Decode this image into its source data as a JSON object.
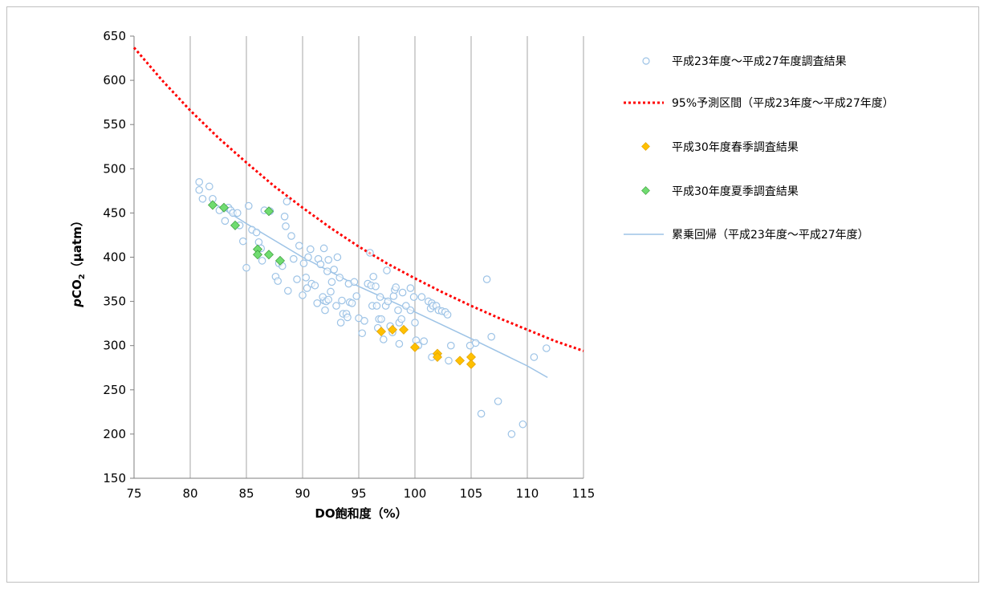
{
  "chart_data": {
    "type": "scatter",
    "xlabel": "DO飽和度（%）",
    "ylabel": {
      "italic": "p",
      "main": "CO",
      "sub": "2",
      "unit": "（µatm）"
    },
    "xlim": [
      75,
      115
    ],
    "ylim": [
      150,
      650
    ],
    "xticks": [
      75,
      80,
      85,
      90,
      95,
      100,
      105,
      110,
      115
    ],
    "yticks": [
      150,
      200,
      250,
      300,
      350,
      400,
      450,
      500,
      550,
      600,
      650
    ],
    "grid": {
      "vertical": true,
      "horizontal": false
    },
    "legend_position": "right",
    "series": [
      {
        "name": "平成23年度～平成27年度調査結果",
        "kind": "scatter",
        "marker": "circle-open",
        "color": "#9dc3e6",
        "points": [
          [
            80.8,
            485
          ],
          [
            80.8,
            476
          ],
          [
            81.1,
            466
          ],
          [
            81.7,
            480
          ],
          [
            82.0,
            466
          ],
          [
            82.6,
            453
          ],
          [
            83.1,
            441
          ],
          [
            83.4,
            456
          ],
          [
            83.6,
            453
          ],
          [
            83.8,
            450
          ],
          [
            84.2,
            450
          ],
          [
            84.4,
            436
          ],
          [
            84.7,
            418
          ],
          [
            85.0,
            388
          ],
          [
            85.2,
            458
          ],
          [
            85.5,
            431
          ],
          [
            85.9,
            428
          ],
          [
            86.1,
            417
          ],
          [
            86.3,
            410
          ],
          [
            86.6,
            453
          ],
          [
            86.4,
            396
          ],
          [
            87.1,
            452
          ],
          [
            87.6,
            378
          ],
          [
            87.8,
            373
          ],
          [
            87.9,
            393
          ],
          [
            88.2,
            390
          ],
          [
            88.4,
            446
          ],
          [
            88.5,
            435
          ],
          [
            88.6,
            463
          ],
          [
            88.7,
            362
          ],
          [
            89.0,
            424
          ],
          [
            89.2,
            398
          ],
          [
            89.5,
            375
          ],
          [
            89.7,
            413
          ],
          [
            90.0,
            357
          ],
          [
            90.1,
            393
          ],
          [
            90.3,
            377
          ],
          [
            90.4,
            365
          ],
          [
            90.5,
            400
          ],
          [
            90.7,
            409
          ],
          [
            90.8,
            370
          ],
          [
            91.1,
            368
          ],
          [
            91.3,
            348
          ],
          [
            91.4,
            398
          ],
          [
            91.6,
            392
          ],
          [
            91.9,
            351
          ],
          [
            91.8,
            355
          ],
          [
            91.9,
            410
          ],
          [
            92.0,
            340
          ],
          [
            92.1,
            350
          ],
          [
            92.2,
            384
          ],
          [
            92.3,
            397
          ],
          [
            92.3,
            352
          ],
          [
            92.5,
            361
          ],
          [
            92.6,
            372
          ],
          [
            92.8,
            386
          ],
          [
            93.0,
            345
          ],
          [
            93.1,
            400
          ],
          [
            93.3,
            377
          ],
          [
            93.4,
            326
          ],
          [
            93.5,
            351
          ],
          [
            93.6,
            336
          ],
          [
            93.9,
            336
          ],
          [
            94.0,
            332
          ],
          [
            94.1,
            370
          ],
          [
            94.2,
            349
          ],
          [
            94.4,
            348
          ],
          [
            94.6,
            372
          ],
          [
            94.8,
            356
          ],
          [
            95.0,
            331
          ],
          [
            95.3,
            314
          ],
          [
            95.5,
            328
          ],
          [
            95.8,
            370
          ],
          [
            96.0,
            405
          ],
          [
            96.1,
            368
          ],
          [
            96.2,
            345
          ],
          [
            96.3,
            378
          ],
          [
            96.5,
            367
          ],
          [
            96.6,
            345
          ],
          [
            96.7,
            320
          ],
          [
            96.8,
            330
          ],
          [
            96.9,
            355
          ],
          [
            97.0,
            330
          ],
          [
            97.2,
            307
          ],
          [
            97.4,
            345
          ],
          [
            97.5,
            385
          ],
          [
            97.6,
            350
          ],
          [
            97.8,
            322
          ],
          [
            98.0,
            315
          ],
          [
            98.1,
            356
          ],
          [
            98.2,
            363
          ],
          [
            98.3,
            366
          ],
          [
            98.5,
            340
          ],
          [
            98.6,
            326
          ],
          [
            98.6,
            302
          ],
          [
            98.8,
            330
          ],
          [
            98.9,
            360
          ],
          [
            99.2,
            345
          ],
          [
            99.6,
            340
          ],
          [
            99.6,
            365
          ],
          [
            99.9,
            355
          ],
          [
            100.0,
            326
          ],
          [
            100.1,
            306
          ],
          [
            100.3,
            300
          ],
          [
            100.6,
            355
          ],
          [
            100.8,
            305
          ],
          [
            101.2,
            350
          ],
          [
            101.4,
            342
          ],
          [
            101.5,
            348
          ],
          [
            101.6,
            345
          ],
          [
            101.5,
            287
          ],
          [
            101.9,
            345
          ],
          [
            102.0,
            290
          ],
          [
            102.1,
            340
          ],
          [
            102.4,
            339
          ],
          [
            102.7,
            338
          ],
          [
            102.9,
            335
          ],
          [
            103.0,
            283
          ],
          [
            103.2,
            300
          ],
          [
            104.9,
            300
          ],
          [
            105.4,
            303
          ],
          [
            105.9,
            223
          ],
          [
            106.4,
            375
          ],
          [
            106.8,
            310
          ],
          [
            107.4,
            237
          ],
          [
            108.6,
            200
          ],
          [
            109.6,
            211
          ],
          [
            110.6,
            287
          ],
          [
            111.7,
            297
          ]
        ]
      },
      {
        "name": "95%予測区間（平成23年度～平成27年度）",
        "kind": "line",
        "style": "dotted",
        "color": "#ff0000",
        "points": [
          [
            75,
            637
          ],
          [
            77.5,
            600
          ],
          [
            80,
            566
          ],
          [
            82.5,
            535
          ],
          [
            85,
            507
          ],
          [
            87.5,
            480
          ],
          [
            90,
            456
          ],
          [
            92.5,
            433
          ],
          [
            95,
            412
          ],
          [
            97.5,
            393
          ],
          [
            100,
            376
          ],
          [
            102.5,
            360
          ],
          [
            105,
            345
          ],
          [
            107.5,
            331
          ],
          [
            110,
            318
          ],
          [
            112.5,
            305
          ],
          [
            115,
            294
          ]
        ]
      },
      {
        "name": "平成30年度春季調査結果",
        "kind": "scatter",
        "marker": "diamond",
        "color": "#ffc000",
        "points": [
          [
            97,
            316
          ],
          [
            98,
            318
          ],
          [
            99,
            318
          ],
          [
            100,
            298
          ],
          [
            102,
            291
          ],
          [
            102,
            287
          ],
          [
            104,
            283
          ],
          [
            105,
            287
          ],
          [
            105,
            279
          ]
        ]
      },
      {
        "name": "平成30年度夏季調査結果",
        "kind": "scatter",
        "marker": "diamond",
        "color": "#70dc70",
        "points": [
          [
            82,
            459
          ],
          [
            83,
            456
          ],
          [
            84,
            436
          ],
          [
            86,
            409
          ],
          [
            86,
            403
          ],
          [
            87,
            403
          ],
          [
            87,
            452
          ],
          [
            88,
            396
          ]
        ]
      },
      {
        "name": "累乗回帰（平成23年度～平成27年度）",
        "kind": "line",
        "style": "solid",
        "color": "#9dc3e6",
        "points": [
          [
            82,
            462
          ],
          [
            85,
            438
          ],
          [
            90,
            400
          ],
          [
            95,
            367
          ],
          [
            100,
            338
          ],
          [
            105,
            308
          ],
          [
            110,
            277
          ],
          [
            111.8,
            264
          ]
        ]
      }
    ]
  }
}
